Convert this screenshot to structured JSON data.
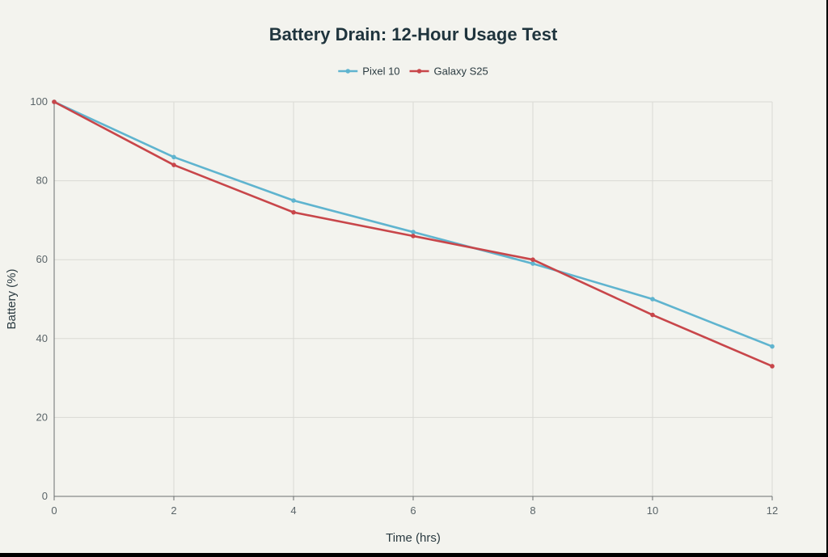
{
  "colors": {
    "background": "#f3f3ee",
    "grid": "#d9d9d4",
    "axis": "#6b6f70",
    "pixel": "#5fb4cf",
    "galaxy": "#c8464a"
  },
  "chart_data": {
    "type": "line",
    "title": "Battery Drain: 12-Hour Usage Test",
    "xlabel": "Time (hrs)",
    "ylabel": "Battery (%)",
    "x": [
      0,
      2,
      4,
      6,
      8,
      10,
      12
    ],
    "xticks": [
      "0",
      "2",
      "4",
      "6",
      "8",
      "10",
      "12"
    ],
    "yticks": [
      "0",
      "20",
      "40",
      "60",
      "80",
      "100"
    ],
    "xlim": [
      0,
      12
    ],
    "ylim": [
      0,
      100
    ],
    "grid": true,
    "legend_position": "top-center",
    "series": [
      {
        "name": "Pixel 10",
        "color": "#5fb4cf",
        "values": [
          100,
          86,
          75,
          67,
          59,
          50,
          38
        ]
      },
      {
        "name": "Galaxy S25",
        "color": "#c8464a",
        "values": [
          100,
          84,
          72,
          66,
          60,
          46,
          33
        ]
      }
    ]
  }
}
